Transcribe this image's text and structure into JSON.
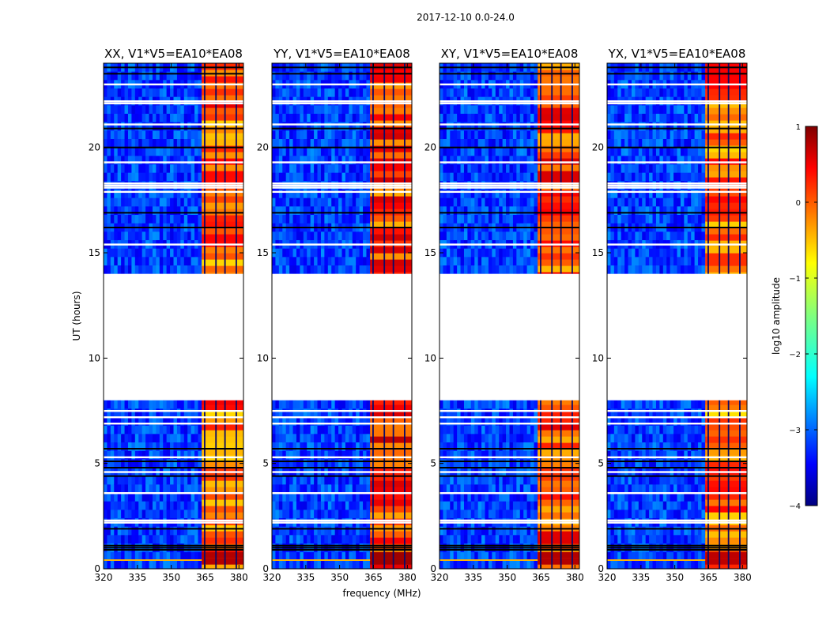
{
  "chart_data": {
    "type": "heatmap",
    "title": "2017-12-10 0.0-24.0",
    "xlabel": "frequency (MHz)",
    "ylabel": "UT (hours)",
    "xlim": [
      320,
      382
    ],
    "ylim": [
      0,
      24
    ],
    "xticks": [
      320,
      335,
      350,
      365,
      380
    ],
    "yticks": [
      0,
      5,
      10,
      15,
      20
    ],
    "panels": [
      {
        "title": "XX, V1*V5=EA10*EA08",
        "band_level": 0.78,
        "low_level": 0.95
      },
      {
        "title": "YY, V1*V5=EA10*EA08",
        "band_level": 0.82,
        "low_level": 0.97
      },
      {
        "title": "XY, V1*V5=EA10*EA08",
        "band_level": 0.8,
        "low_level": 0.95
      },
      {
        "title": "YX, V1*V5=EA10*EA08",
        "band_level": 0.77,
        "low_level": 0.94
      }
    ],
    "data_gap_hours": [
      8.0,
      14.0
    ],
    "blank_row_hours": [
      23.0,
      22.2,
      22.1,
      21.1,
      19.3,
      18.3,
      18.2,
      18.1,
      17.9,
      15.4,
      7.5,
      7.2,
      6.9,
      5.3,
      4.6,
      3.6,
      2.3,
      2.2
    ],
    "dark_row_hours": [
      23.8,
      23.5,
      20.9,
      20.0,
      16.9,
      16.2,
      5.7,
      5.1,
      4.8,
      4.4,
      1.9,
      1.1,
      1.0,
      0.9
    ],
    "rfi_band_mhz": [
      363.5,
      383
    ],
    "rfi_line_mhz": [
      364.5,
      369.5,
      373.5,
      378.5
    ],
    "colorbar": {
      "label": "log10 amplitude",
      "min": -4,
      "max": 1,
      "ticks": [
        1,
        0,
        -1,
        -2,
        -3,
        -4
      ],
      "tick_labels": [
        "1",
        "0",
        "−1",
        "−2",
        "−3",
        "−4"
      ]
    }
  }
}
